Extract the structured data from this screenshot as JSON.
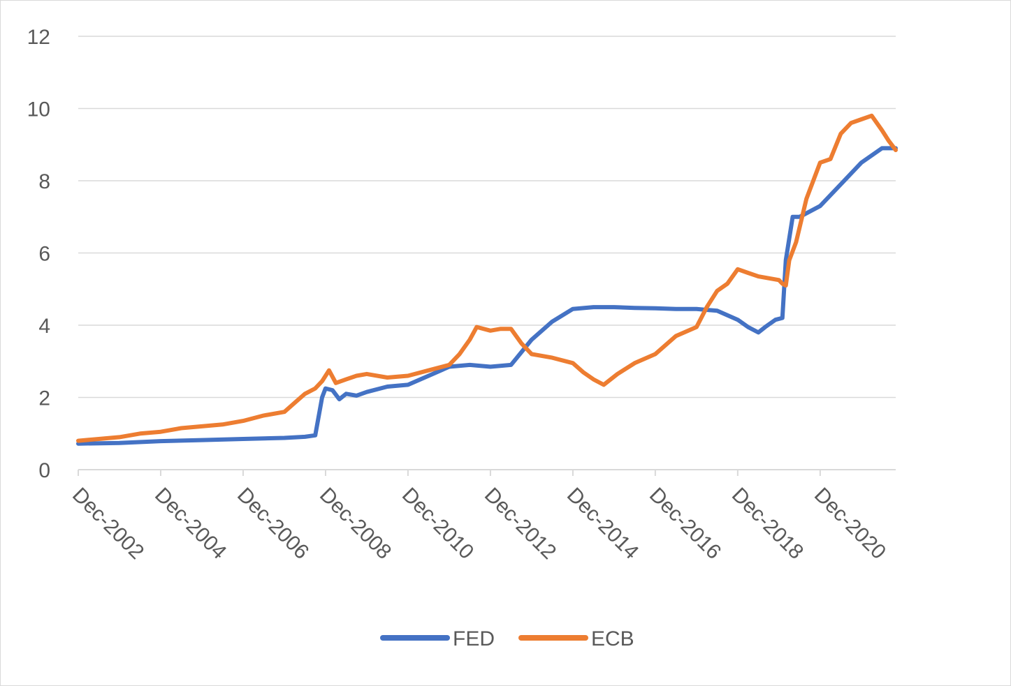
{
  "chart_data": {
    "type": "line",
    "title": "",
    "xlabel": "",
    "ylabel": "",
    "x_range": [
      "2002-12",
      "2022-10"
    ],
    "ylim": [
      0,
      12
    ],
    "y_ticks": [
      0,
      2,
      4,
      6,
      8,
      10,
      12
    ],
    "x_tick_labels": [
      "Dec-2002",
      "Dec-2004",
      "Dec-2006",
      "Dec-2008",
      "Dec-2010",
      "Dec-2012",
      "Dec-2014",
      "Dec-2016",
      "Dec-2018",
      "Dec-2020"
    ],
    "grid": "horizontal",
    "legend_position": "bottom",
    "series": [
      {
        "name": "FED",
        "color": "#4472C4",
        "points": [
          [
            "2002-12",
            0.72
          ],
          [
            "2003-12",
            0.74
          ],
          [
            "2004-12",
            0.79
          ],
          [
            "2005-12",
            0.82
          ],
          [
            "2006-12",
            0.85
          ],
          [
            "2007-12",
            0.88
          ],
          [
            "2008-06",
            0.91
          ],
          [
            "2008-09",
            0.95
          ],
          [
            "2008-11",
            2.0
          ],
          [
            "2008-12",
            2.25
          ],
          [
            "2009-02",
            2.2
          ],
          [
            "2009-04",
            1.95
          ],
          [
            "2009-06",
            2.1
          ],
          [
            "2009-09",
            2.05
          ],
          [
            "2009-12",
            2.15
          ],
          [
            "2010-06",
            2.3
          ],
          [
            "2010-12",
            2.35
          ],
          [
            "2011-06",
            2.6
          ],
          [
            "2011-12",
            2.85
          ],
          [
            "2012-06",
            2.9
          ],
          [
            "2012-12",
            2.85
          ],
          [
            "2013-06",
            2.9
          ],
          [
            "2013-12",
            3.6
          ],
          [
            "2014-06",
            4.1
          ],
          [
            "2014-12",
            4.45
          ],
          [
            "2015-06",
            4.5
          ],
          [
            "2015-12",
            4.5
          ],
          [
            "2016-06",
            4.48
          ],
          [
            "2016-12",
            4.47
          ],
          [
            "2017-06",
            4.45
          ],
          [
            "2017-12",
            4.45
          ],
          [
            "2018-06",
            4.4
          ],
          [
            "2018-12",
            4.15
          ],
          [
            "2019-03",
            3.95
          ],
          [
            "2019-06",
            3.8
          ],
          [
            "2019-08",
            3.95
          ],
          [
            "2019-11",
            4.15
          ],
          [
            "2020-01",
            4.2
          ],
          [
            "2020-02",
            5.8
          ],
          [
            "2020-04",
            7.0
          ],
          [
            "2020-06",
            7.0
          ],
          [
            "2020-12",
            7.3
          ],
          [
            "2021-06",
            7.9
          ],
          [
            "2021-12",
            8.5
          ],
          [
            "2022-06",
            8.9
          ],
          [
            "2022-10",
            8.9
          ]
        ]
      },
      {
        "name": "ECB",
        "color": "#ED7D31",
        "points": [
          [
            "2002-12",
            0.8
          ],
          [
            "2003-06",
            0.85
          ],
          [
            "2003-12",
            0.9
          ],
          [
            "2004-06",
            1.0
          ],
          [
            "2004-12",
            1.05
          ],
          [
            "2005-06",
            1.15
          ],
          [
            "2005-12",
            1.2
          ],
          [
            "2006-06",
            1.25
          ],
          [
            "2006-12",
            1.35
          ],
          [
            "2007-06",
            1.5
          ],
          [
            "2007-12",
            1.6
          ],
          [
            "2008-03",
            1.85
          ],
          [
            "2008-06",
            2.1
          ],
          [
            "2008-09",
            2.25
          ],
          [
            "2008-11",
            2.45
          ],
          [
            "2009-01",
            2.75
          ],
          [
            "2009-03",
            2.4
          ],
          [
            "2009-06",
            2.5
          ],
          [
            "2009-09",
            2.6
          ],
          [
            "2009-12",
            2.65
          ],
          [
            "2010-06",
            2.55
          ],
          [
            "2010-12",
            2.6
          ],
          [
            "2011-06",
            2.75
          ],
          [
            "2011-12",
            2.9
          ],
          [
            "2012-03",
            3.2
          ],
          [
            "2012-06",
            3.6
          ],
          [
            "2012-08",
            3.95
          ],
          [
            "2012-12",
            3.85
          ],
          [
            "2013-03",
            3.9
          ],
          [
            "2013-06",
            3.9
          ],
          [
            "2013-09",
            3.5
          ],
          [
            "2013-12",
            3.2
          ],
          [
            "2014-06",
            3.1
          ],
          [
            "2014-12",
            2.95
          ],
          [
            "2015-03",
            2.7
          ],
          [
            "2015-06",
            2.5
          ],
          [
            "2015-09",
            2.35
          ],
          [
            "2016-01",
            2.65
          ],
          [
            "2016-06",
            2.95
          ],
          [
            "2016-12",
            3.2
          ],
          [
            "2017-06",
            3.7
          ],
          [
            "2017-12",
            3.95
          ],
          [
            "2018-03",
            4.5
          ],
          [
            "2018-06",
            4.95
          ],
          [
            "2018-09",
            5.15
          ],
          [
            "2018-12",
            5.55
          ],
          [
            "2019-03",
            5.45
          ],
          [
            "2019-06",
            5.35
          ],
          [
            "2019-12",
            5.25
          ],
          [
            "2020-01",
            5.15
          ],
          [
            "2020-02",
            5.1
          ],
          [
            "2020-03",
            5.8
          ],
          [
            "2020-05",
            6.3
          ],
          [
            "2020-08",
            7.5
          ],
          [
            "2020-12",
            8.5
          ],
          [
            "2021-03",
            8.6
          ],
          [
            "2021-06",
            9.3
          ],
          [
            "2021-09",
            9.6
          ],
          [
            "2021-12",
            9.7
          ],
          [
            "2022-03",
            9.8
          ],
          [
            "2022-06",
            9.4
          ],
          [
            "2022-08",
            9.1
          ],
          [
            "2022-10",
            8.85
          ]
        ]
      }
    ]
  }
}
